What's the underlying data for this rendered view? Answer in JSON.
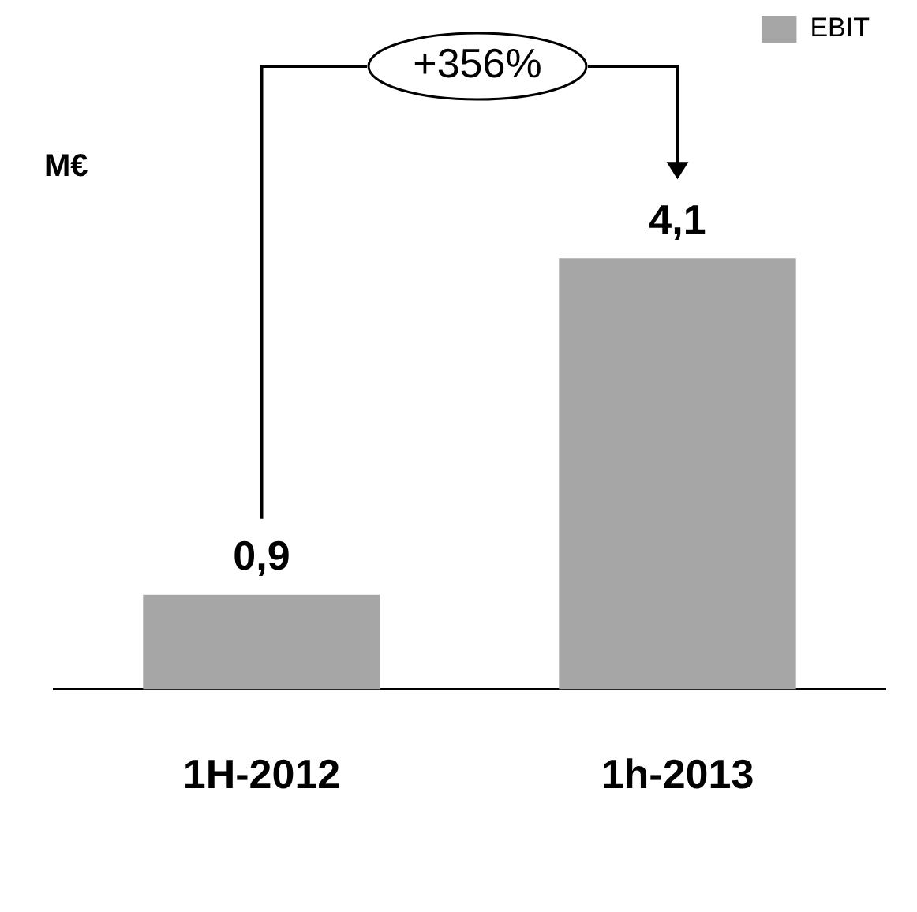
{
  "chart_data": {
    "type": "bar",
    "categories": [
      "1H-2012",
      "1h-2013"
    ],
    "series": [
      {
        "name": "EBIT",
        "color": "#a6a6a6",
        "values": [
          0.9,
          4.1
        ],
        "value_labels": [
          "0,9",
          "4,1"
        ]
      }
    ],
    "ylabel": "M€",
    "legend": "top right",
    "grid": false,
    "tick_labels": "x",
    "annotations": [
      "+356%"
    ]
  }
}
